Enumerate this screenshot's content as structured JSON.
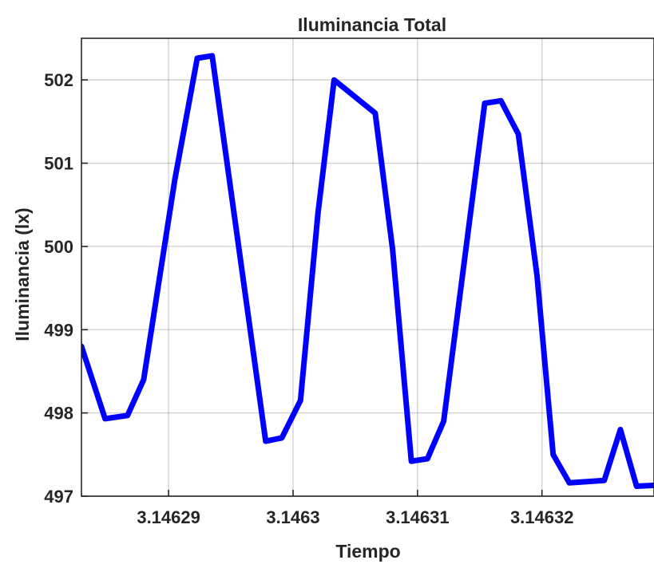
{
  "chart_data": {
    "type": "line",
    "title": "Iluminancia Total",
    "xlabel": "Tiempo",
    "ylabel": "Iluminancia (lx)",
    "xlim": [
      3.146283,
      3.146329
    ],
    "ylim": [
      497,
      502.5
    ],
    "xticks": [
      {
        "value": 3.14629,
        "label": "3.14629"
      },
      {
        "value": 3.1463,
        "label": "3.1463"
      },
      {
        "value": 3.14631,
        "label": "3.14631"
      },
      {
        "value": 3.14632,
        "label": "3.14632"
      }
    ],
    "yticks": [
      {
        "value": 497,
        "label": "497"
      },
      {
        "value": 498,
        "label": "498"
      },
      {
        "value": 499,
        "label": "499"
      },
      {
        "value": 500,
        "label": "500"
      },
      {
        "value": 501,
        "label": "501"
      },
      {
        "value": 502,
        "label": "502"
      }
    ],
    "grid": true,
    "legend": "none",
    "series": [
      {
        "color": "#0000ff",
        "x": [
          3.146283,
          3.1462849,
          3.1462867,
          3.146288,
          3.1462905,
          3.1462923,
          3.1462935,
          3.1462978,
          3.1462991,
          3.1463006,
          3.146302,
          3.1463033,
          3.1463066,
          3.146308,
          3.1463095,
          3.1463108,
          3.1463121,
          3.1463154,
          3.1463167,
          3.1463181,
          3.1463196,
          3.1463209,
          3.1463222,
          3.146325,
          3.1463263,
          3.1463276,
          3.146329
        ],
        "y": [
          498.8,
          497.93,
          497.97,
          498.4,
          500.8,
          502.26,
          502.29,
          497.66,
          497.7,
          498.15,
          500.4,
          502.0,
          501.6,
          499.96,
          497.42,
          497.45,
          497.9,
          501.72,
          501.75,
          501.35,
          499.65,
          497.5,
          497.16,
          497.19,
          497.8,
          497.12,
          497.13
        ]
      }
    ]
  }
}
